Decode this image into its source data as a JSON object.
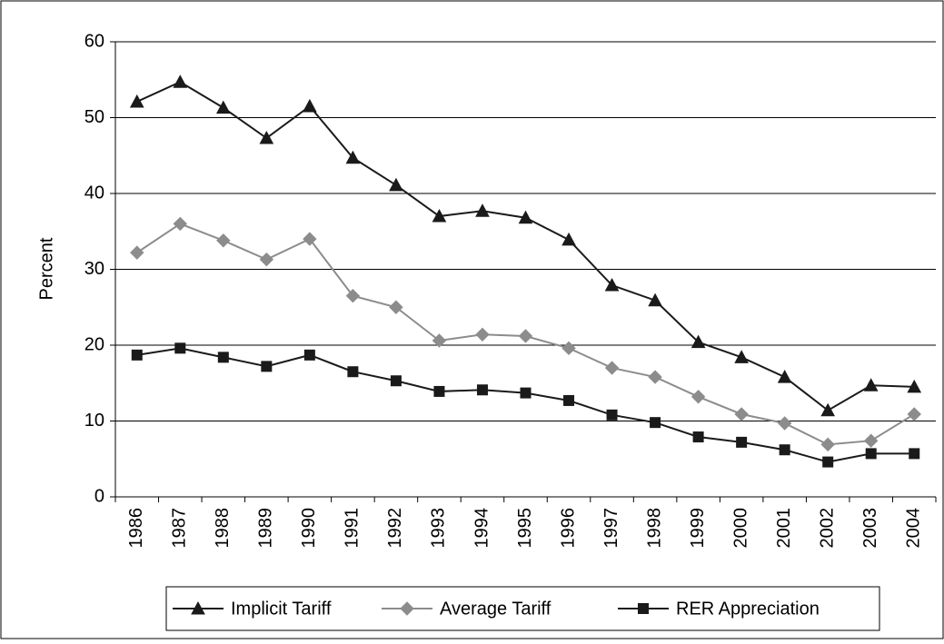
{
  "chart_data": {
    "type": "line",
    "ylabel": "Percent",
    "categories": [
      "1986",
      "1987",
      "1988",
      "1989",
      "1990",
      "1991",
      "1992",
      "1993",
      "1994",
      "1995",
      "1996",
      "1997",
      "1998",
      "1999",
      "2000",
      "2001",
      "2002",
      "2003",
      "2004"
    ],
    "series": [
      {
        "name": "Implicit Tariff",
        "color": "#1a1a1a",
        "marker": "triangle",
        "values": [
          52.1,
          54.7,
          51.3,
          47.3,
          51.5,
          44.7,
          41.1,
          37.0,
          37.7,
          36.8,
          33.9,
          27.9,
          25.9,
          20.4,
          18.4,
          15.8,
          11.4,
          14.7,
          14.5
        ]
      },
      {
        "name": "Average Tariff",
        "color": "#8c8c8c",
        "marker": "diamond",
        "values": [
          32.2,
          36.0,
          33.8,
          31.3,
          34.0,
          26.5,
          25.0,
          20.6,
          21.4,
          21.2,
          19.6,
          17.0,
          15.8,
          13.2,
          10.9,
          9.7,
          6.9,
          7.4,
          10.9
        ]
      },
      {
        "name": "RER Appreciation",
        "color": "#1a1a1a",
        "marker": "square",
        "values": [
          18.7,
          19.6,
          18.4,
          17.2,
          18.7,
          16.5,
          15.3,
          13.9,
          14.1,
          13.7,
          12.7,
          10.8,
          9.8,
          7.9,
          7.2,
          6.2,
          4.6,
          5.7,
          5.7
        ]
      }
    ],
    "ylim": [
      0,
      60
    ],
    "yticks": [
      0,
      10,
      20,
      30,
      40,
      50,
      60
    ],
    "grid": true,
    "legend": "bottom"
  }
}
